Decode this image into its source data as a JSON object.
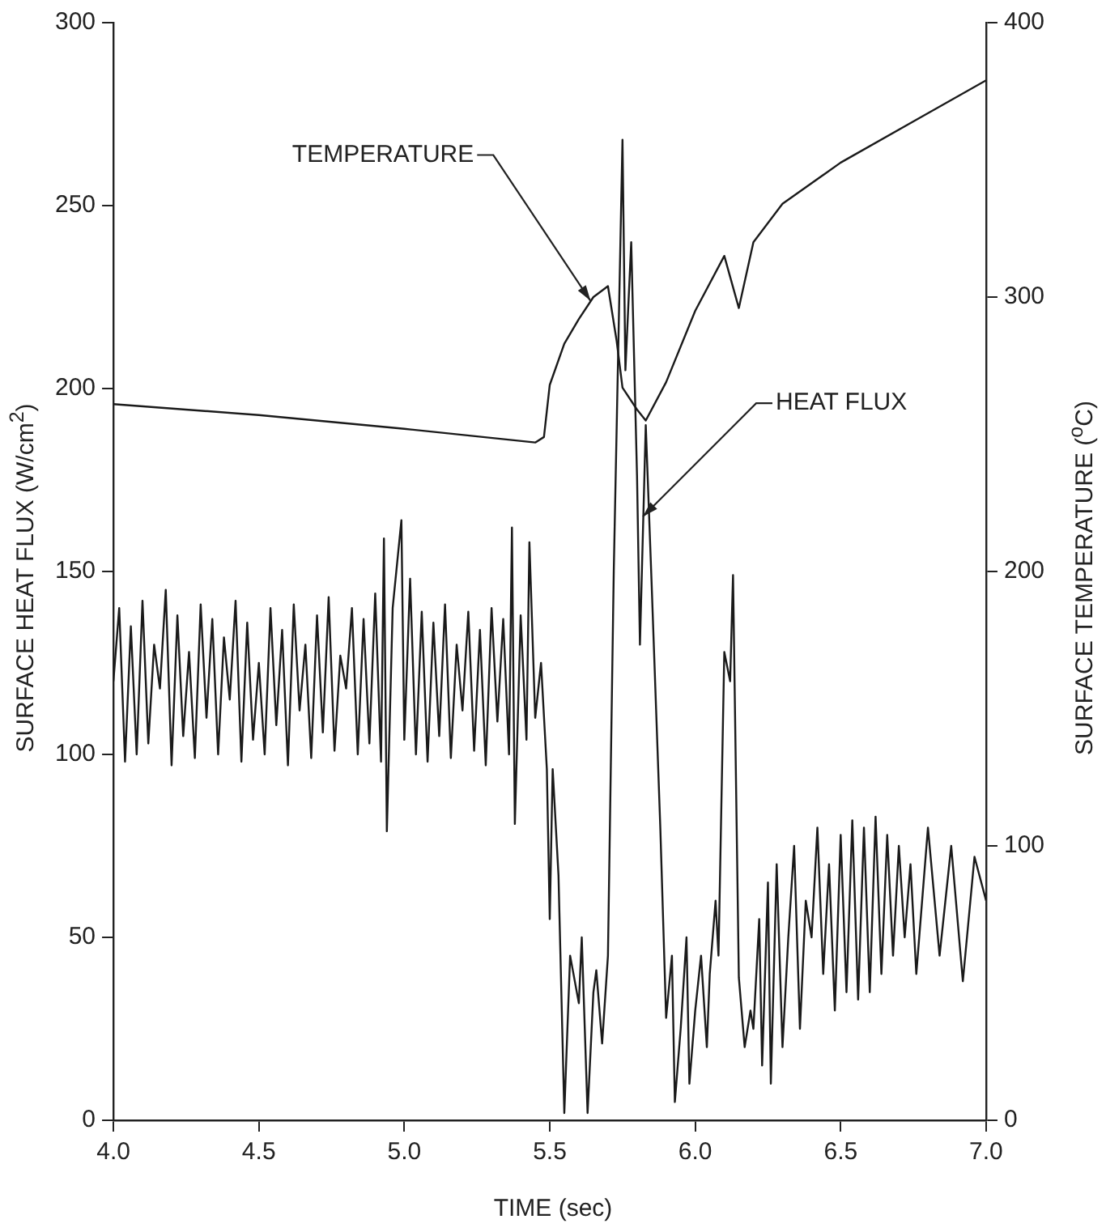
{
  "chart_data": {
    "type": "line",
    "xlabel": "TIME (sec)",
    "ylabel": "SURFACE HEAT FLUX (W/cm$^{2}$)",
    "y2label": "SURFACE TEMPERATURE ($^{o}$C)",
    "xlim": [
      4.0,
      7.0
    ],
    "xticks": [
      {
        "value": 4,
        "label": "4.0"
      },
      4.5,
      {
        "value": 5,
        "label": "5.0"
      },
      5.5,
      {
        "value": 6,
        "label": "6.0"
      },
      6.5,
      {
        "value": 7,
        "label": "7.0"
      }
    ],
    "ylim": [
      0,
      300
    ],
    "yticks": [
      0,
      50,
      100,
      150,
      200,
      250,
      300
    ],
    "y2lim": [
      0,
      400
    ],
    "y2ticks": [
      0,
      100,
      200,
      300,
      400
    ],
    "grid": false,
    "legend": false,
    "marker": "none",
    "line_style": "solid",
    "series": [
      {
        "color": "#1a1a1a",
        "x": [
          4.0,
          4.02,
          4.04,
          4.06,
          4.08,
          4.1,
          4.12,
          4.14,
          4.16,
          4.18,
          4.2,
          4.22,
          4.24,
          4.26,
          4.28,
          4.3,
          4.32,
          4.34,
          4.36,
          4.38,
          4.4,
          4.42,
          4.44,
          4.46,
          4.48,
          4.5,
          4.52,
          4.54,
          4.56,
          4.58,
          4.6,
          4.62,
          4.64,
          4.66,
          4.68,
          4.7,
          4.72,
          4.74,
          4.76,
          4.78,
          4.8,
          4.82,
          4.84,
          4.86,
          4.88,
          4.9,
          4.92,
          4.93,
          4.94,
          4.96,
          4.99,
          5.0,
          5.02,
          5.04,
          5.06,
          5.08,
          5.1,
          5.12,
          5.14,
          5.16,
          5.18,
          5.2,
          5.22,
          5.24,
          5.26,
          5.28,
          5.3,
          5.32,
          5.34,
          5.36,
          5.37,
          5.38,
          5.4,
          5.42,
          5.43,
          5.45,
          5.47,
          5.49,
          5.5,
          5.51,
          5.53,
          5.55,
          5.57,
          5.6,
          5.61,
          5.63,
          5.65,
          5.66,
          5.68,
          5.7,
          5.72,
          5.75,
          5.76,
          5.78,
          5.8,
          5.81,
          5.83,
          5.85,
          5.88,
          5.9,
          5.92,
          5.93,
          5.95,
          5.97,
          5.98,
          6.0,
          6.02,
          6.04,
          6.05,
          6.07,
          6.08,
          6.1,
          6.12,
          6.13,
          6.15,
          6.17,
          6.19,
          6.2,
          6.22,
          6.23,
          6.25,
          6.26,
          6.28,
          6.3,
          6.32,
          6.34,
          6.36,
          6.38,
          6.4,
          6.42,
          6.44,
          6.46,
          6.48,
          6.5,
          6.52,
          6.54,
          6.56,
          6.58,
          6.6,
          6.62,
          6.64,
          6.66,
          6.68,
          6.7,
          6.72,
          6.74,
          6.76,
          6.8,
          6.84,
          6.88,
          6.92,
          6.96,
          7.0
        ],
        "values": [
          120,
          140,
          98,
          135,
          100,
          142,
          103,
          130,
          118,
          145,
          97,
          138,
          105,
          128,
          99,
          141,
          110,
          137,
          100,
          132,
          115,
          142,
          98,
          136,
          104,
          125,
          100,
          140,
          108,
          134,
          97,
          141,
          112,
          130,
          99,
          138,
          106,
          143,
          101,
          127,
          118,
          140,
          100,
          137,
          103,
          144,
          98,
          159,
          79,
          140,
          164,
          104,
          148,
          100,
          139,
          98,
          136,
          105,
          141,
          99,
          130,
          112,
          139,
          101,
          134,
          97,
          140,
          109,
          137,
          100,
          162,
          81,
          138,
          104,
          158,
          110,
          125,
          96,
          55,
          96,
          67,
          2,
          45,
          32,
          50,
          2,
          35,
          41,
          21,
          45,
          150,
          268,
          205,
          240,
          176,
          130,
          190,
          147,
          80,
          28,
          45,
          5,
          25,
          50,
          10,
          30,
          45,
          20,
          40,
          60,
          45,
          128,
          120,
          149,
          39,
          20,
          30,
          25,
          55,
          15,
          65,
          10,
          70,
          20,
          50,
          75,
          25,
          60,
          50,
          80,
          40,
          70,
          30,
          78,
          35,
          82,
          33,
          80,
          35,
          83,
          40,
          78,
          45,
          75,
          50,
          70,
          40,
          80,
          45,
          75,
          38,
          72,
          60
        ]
      },
      {
        "color": "#1a1a1a",
        "axis": "y2",
        "x": [
          4.0,
          4.5,
          5.0,
          5.45,
          5.48,
          5.5,
          5.55,
          5.6,
          5.65,
          5.7,
          5.73,
          5.75,
          5.8,
          5.83,
          5.9,
          6.0,
          6.1,
          6.15,
          6.2,
          6.3,
          6.5,
          6.75,
          7.0
        ],
        "values": [
          261,
          257,
          252,
          247,
          249,
          268,
          283,
          292,
          300,
          304,
          284,
          267,
          259,
          255,
          269,
          295,
          315,
          296,
          320,
          334,
          349,
          364,
          379
        ]
      }
    ],
    "annotations": [
      {
        "text": "TEMPERATURE",
        "x": 5.64,
        "y": 224
      },
      {
        "text": "HEAT FLUX",
        "x": 5.82,
        "y": 165
      }
    ]
  }
}
